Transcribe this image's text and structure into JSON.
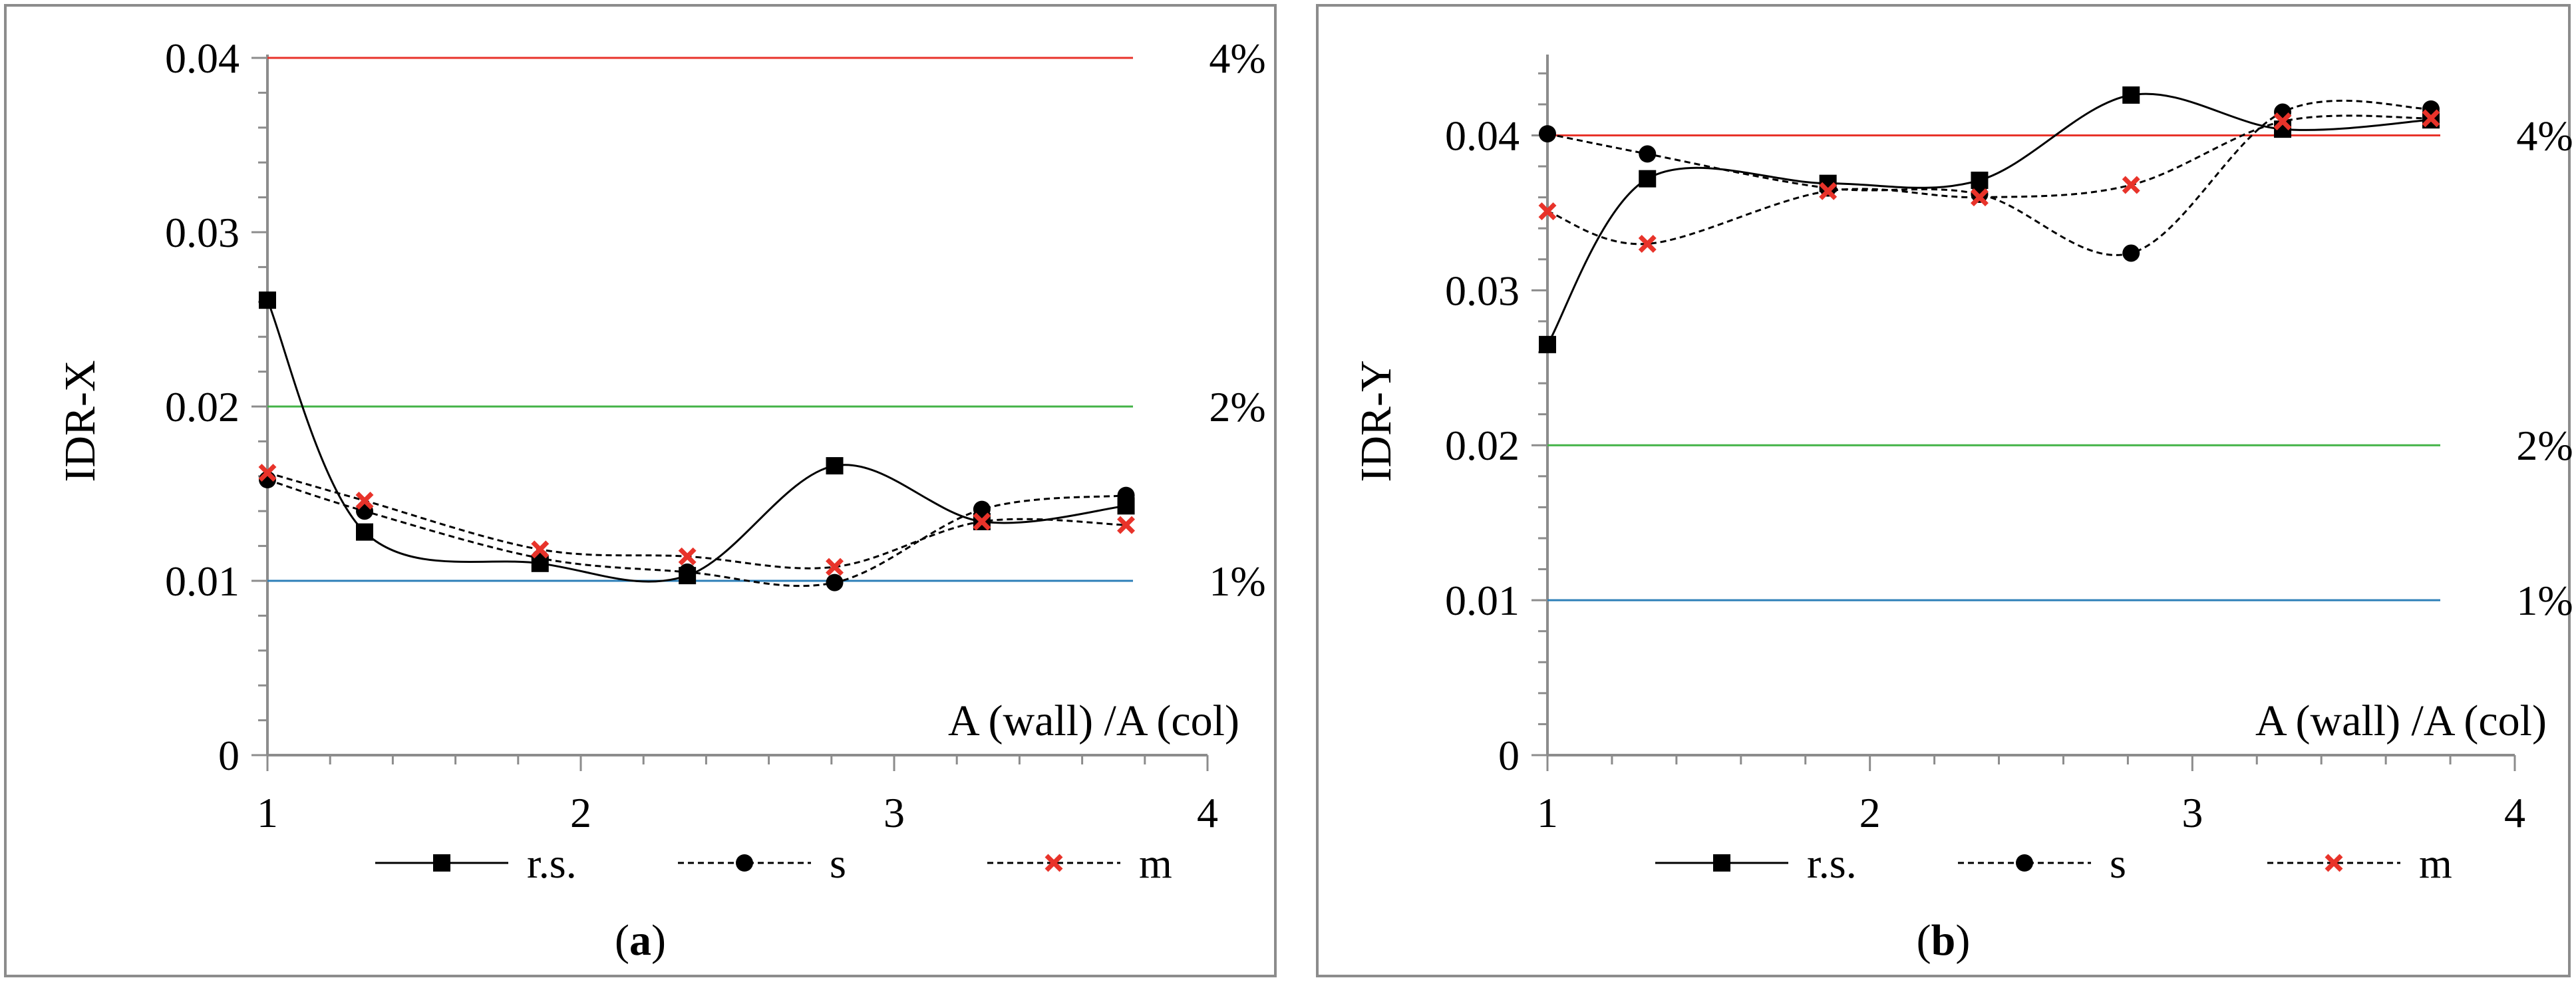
{
  "chart_data": [
    {
      "type": "line",
      "panel_label": "a",
      "ylabel": "IDR-X",
      "xlabel": "A (wall) /A (col)",
      "xlim": [
        1,
        4
      ],
      "ylim": [
        0,
        0.04
      ],
      "xticks": [
        "1",
        "2",
        "3",
        "4"
      ],
      "yticks": [
        "0",
        "0.01",
        "0.02",
        "0.03",
        "0.04"
      ],
      "x": [
        1.0,
        1.31,
        1.87,
        2.34,
        2.81,
        3.28,
        3.74
      ],
      "series": [
        {
          "name": "r.s.",
          "marker": "square",
          "dashed": false,
          "values": [
            0.0261,
            0.0128,
            0.011,
            0.0103,
            0.0166,
            0.0134,
            0.0143
          ]
        },
        {
          "name": "s",
          "marker": "circle",
          "dashed": true,
          "values": [
            0.0158,
            0.014,
            0.0113,
            0.0105,
            0.0099,
            0.0141,
            0.0149
          ]
        },
        {
          "name": "m",
          "marker": "x",
          "dashed": true,
          "values": [
            0.0162,
            0.0146,
            0.0118,
            0.0114,
            0.0108,
            0.0134,
            0.0132
          ]
        }
      ],
      "reference_lines": [
        {
          "value": 0.04,
          "label": "4%",
          "color": "#e8332a"
        },
        {
          "value": 0.02,
          "label": "2%",
          "color": "#43b347"
        },
        {
          "value": 0.01,
          "label": "1%",
          "color": "#2d7fb8"
        }
      ]
    },
    {
      "type": "line",
      "panel_label": "b",
      "ylabel": "IDR-Y",
      "xlabel": "A (wall) /A (col)",
      "xlim": [
        1,
        4
      ],
      "ylim": [
        0,
        0.045
      ],
      "xticks": [
        "1",
        "2",
        "3",
        "4"
      ],
      "yticks": [
        "0",
        "0.01",
        "0.02",
        "0.03",
        "0.04"
      ],
      "x": [
        1.0,
        1.31,
        1.87,
        2.34,
        2.81,
        3.28,
        3.74
      ],
      "series": [
        {
          "name": "r.s.",
          "marker": "square",
          "dashed": false,
          "values": [
            0.0265,
            0.0372,
            0.0369,
            0.0371,
            0.0426,
            0.0404,
            0.041
          ]
        },
        {
          "name": "s",
          "marker": "circle",
          "dashed": true,
          "values": [
            0.0401,
            0.0388,
            0.0366,
            0.0362,
            0.0324,
            0.0415,
            0.0417
          ]
        },
        {
          "name": "m",
          "marker": "x",
          "dashed": true,
          "values": [
            0.0351,
            0.033,
            0.0364,
            0.036,
            0.0368,
            0.0409,
            0.0411
          ]
        }
      ],
      "reference_lines": [
        {
          "value": 0.04,
          "label": "4%",
          "color": "#e8332a"
        },
        {
          "value": 0.02,
          "label": "2%",
          "color": "#43b347"
        },
        {
          "value": 0.01,
          "label": "1%",
          "color": "#2d7fb8"
        }
      ]
    }
  ]
}
